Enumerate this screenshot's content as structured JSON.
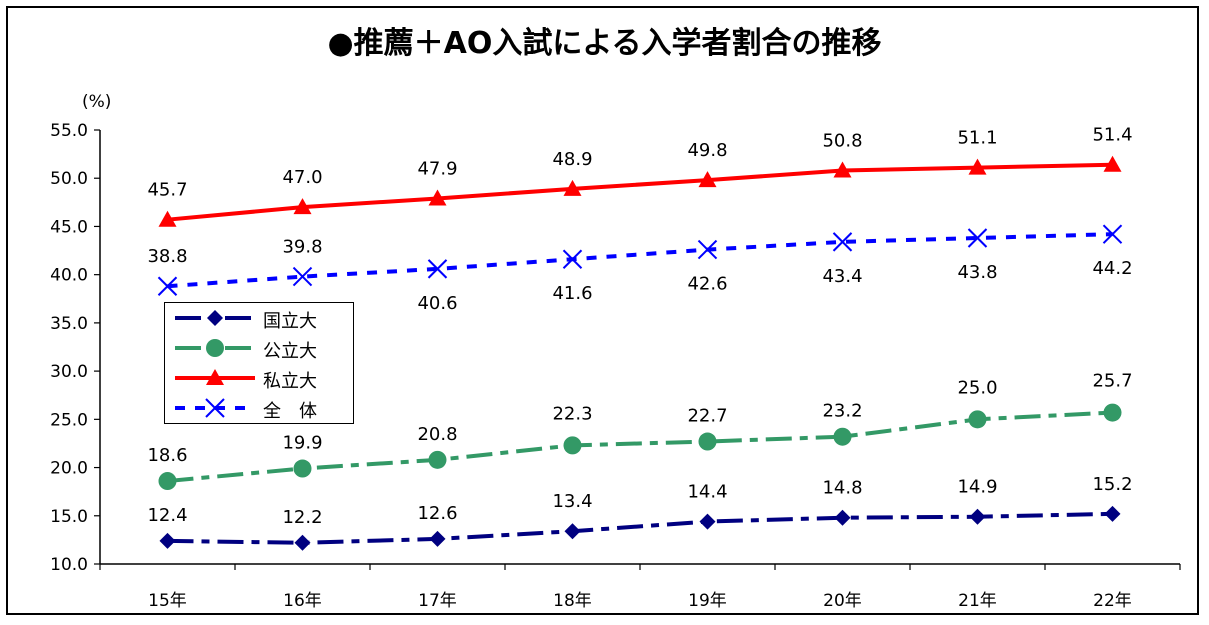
{
  "chart_data": {
    "type": "line",
    "title": "●推薦＋AO入試による入学者割合の推移",
    "ylabel": "(%)",
    "xlabel": "",
    "categories": [
      "15年",
      "16年",
      "17年",
      "18年",
      "19年",
      "20年",
      "21年",
      "22年"
    ],
    "ylim": [
      10.0,
      55.0
    ],
    "yticks": [
      "55.0",
      "50.0",
      "45.0",
      "40.0",
      "35.0",
      "30.0",
      "25.0",
      "20.0",
      "15.0",
      "10.0"
    ],
    "series": [
      {
        "name": "国立大",
        "color": "#000080",
        "marker": "diamond",
        "dash": "long-dash-dot",
        "values": [
          12.4,
          12.2,
          12.6,
          13.4,
          14.4,
          14.8,
          14.9,
          15.2
        ],
        "labels": [
          "12.4",
          "12.2",
          "12.6",
          "13.4",
          "14.4",
          "14.8",
          "14.9",
          "15.2"
        ]
      },
      {
        "name": "公立大",
        "color": "#339966",
        "marker": "circle",
        "dash": "long-dash-dot",
        "values": [
          18.6,
          19.9,
          20.8,
          22.3,
          22.7,
          23.2,
          25.0,
          25.7
        ],
        "labels": [
          "18.6",
          "19.9",
          "20.8",
          "22.3",
          "22.7",
          "23.2",
          "25.0",
          "25.7"
        ]
      },
      {
        "name": "私立大",
        "color": "#ff0000",
        "marker": "triangle",
        "dash": "solid",
        "values": [
          45.7,
          47.0,
          47.9,
          48.9,
          49.8,
          50.8,
          51.1,
          51.4
        ],
        "labels": [
          "45.7",
          "47.0",
          "47.9",
          "48.9",
          "49.8",
          "50.8",
          "51.1",
          "51.4"
        ]
      },
      {
        "name": "全　体",
        "color": "#0000ff",
        "marker": "x",
        "dash": "dotted",
        "values": [
          38.8,
          39.8,
          40.6,
          41.6,
          42.6,
          43.4,
          43.8,
          44.2
        ],
        "labels": [
          "38.8",
          "39.8",
          "40.6",
          "41.6",
          "42.6",
          "43.4",
          "43.8",
          "44.2"
        ]
      }
    ],
    "legend": "left-middle",
    "grid": false
  }
}
